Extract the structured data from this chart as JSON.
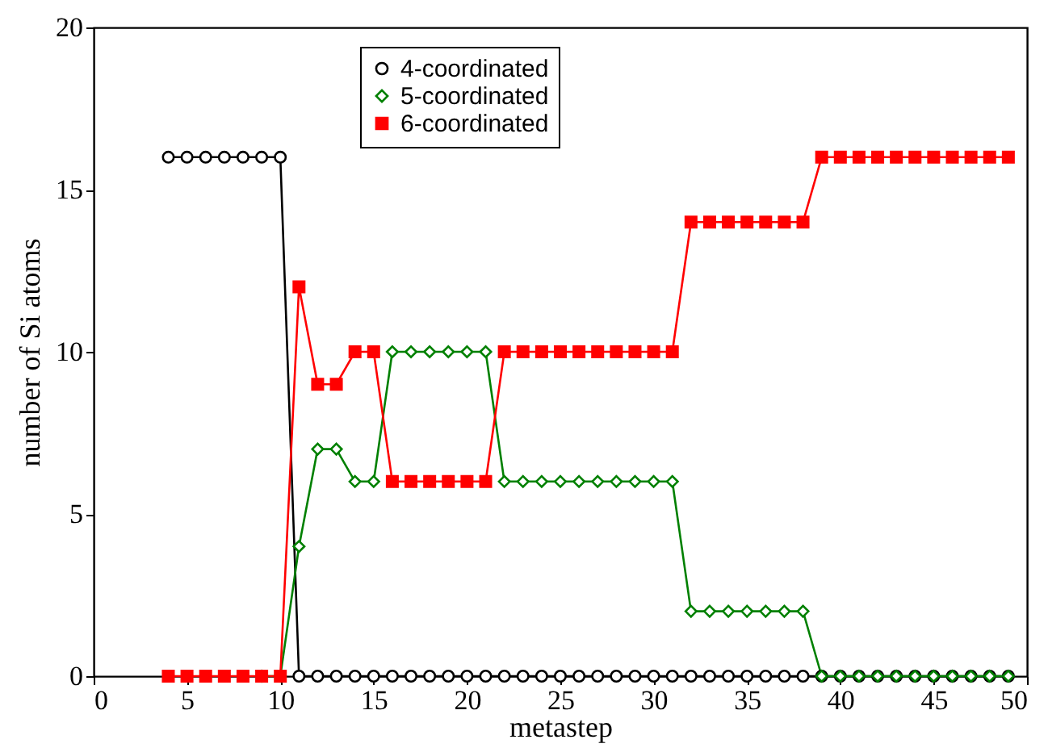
{
  "chart_data": {
    "type": "line",
    "xlabel": "metastep",
    "ylabel": "number of Si atoms",
    "x": [
      4,
      5,
      6,
      7,
      8,
      9,
      10,
      11,
      12,
      13,
      14,
      15,
      16,
      17,
      18,
      19,
      20,
      21,
      22,
      23,
      24,
      25,
      26,
      27,
      28,
      29,
      30,
      31,
      32,
      33,
      34,
      35,
      36,
      37,
      38,
      39,
      40,
      41,
      42,
      43,
      44,
      45,
      46,
      47,
      48,
      49
    ],
    "series": [
      {
        "name": "4-coordinated",
        "color": "#000000",
        "marker": "circle",
        "values": [
          16,
          16,
          16,
          16,
          16,
          16,
          16,
          0,
          0,
          0,
          0,
          0,
          0,
          0,
          0,
          0,
          0,
          0,
          0,
          0,
          0,
          0,
          0,
          0,
          0,
          0,
          0,
          0,
          0,
          0,
          0,
          0,
          0,
          0,
          0,
          0,
          0,
          0,
          0,
          0,
          0,
          0,
          0,
          0,
          0,
          0
        ]
      },
      {
        "name": "5-coordinated",
        "color": "#008000",
        "marker": "diamond",
        "values": [
          null,
          null,
          null,
          null,
          null,
          0,
          0,
          4,
          7,
          7,
          6,
          6,
          10,
          10,
          10,
          10,
          10,
          10,
          6,
          6,
          6,
          6,
          6,
          6,
          6,
          6,
          6,
          6,
          2,
          2,
          2,
          2,
          2,
          2,
          2,
          0,
          0,
          0,
          0,
          0,
          0,
          0,
          0,
          0,
          0,
          0
        ]
      },
      {
        "name": "6-coordinated",
        "color": "#ff0000",
        "marker": "square",
        "values": [
          0,
          0,
          0,
          0,
          0,
          0,
          0,
          12,
          9,
          9,
          10,
          10,
          6,
          6,
          6,
          6,
          6,
          6,
          10,
          10,
          10,
          10,
          10,
          10,
          10,
          10,
          10,
          10,
          14,
          14,
          14,
          14,
          14,
          14,
          14,
          16,
          16,
          16,
          16,
          16,
          16,
          16,
          16,
          16,
          16,
          16
        ]
      }
    ],
    "xlim": [
      0,
      50
    ],
    "xticks": [
      0,
      5,
      10,
      15,
      20,
      25,
      30,
      35,
      40,
      45,
      50
    ],
    "ylim": [
      0,
      20
    ],
    "yticks": [
      0,
      5,
      10,
      15,
      20
    ],
    "grid": false,
    "legend": "top left",
    "line_style": "solid"
  }
}
